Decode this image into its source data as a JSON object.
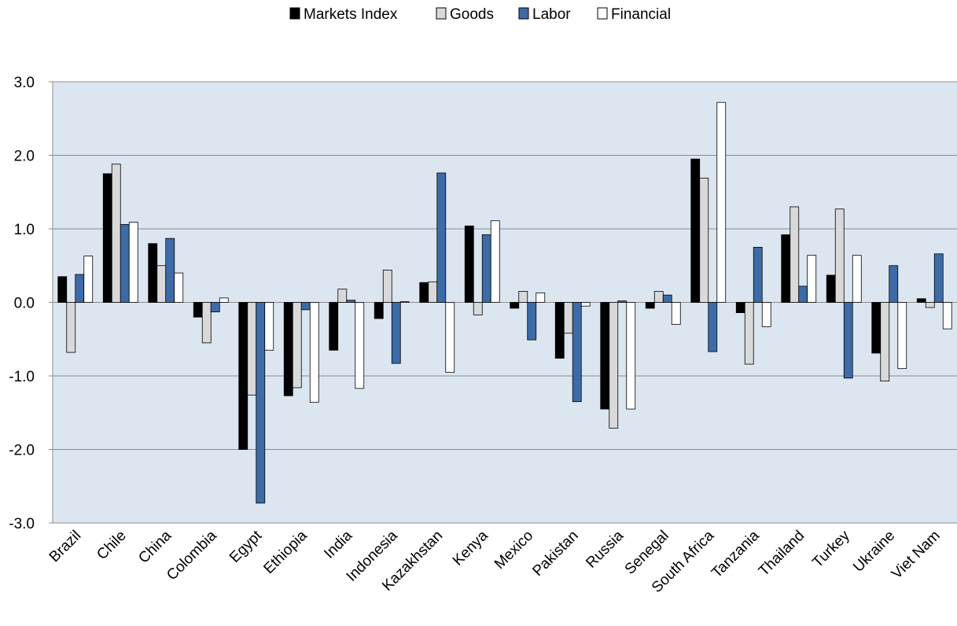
{
  "chart_data": {
    "type": "bar",
    "categories": [
      "Brazil",
      "Chile",
      "China",
      "Colombia",
      "Egypt",
      "Ethiopia",
      "India",
      "Indonesia",
      "Kazakhstan",
      "Kenya",
      "Mexico",
      "Pakistan",
      "Russia",
      "Senegal",
      "South Africa",
      "Tanzania",
      "Thailand",
      "Turkey",
      "Ukraine",
      "Viet Nam"
    ],
    "series": [
      {
        "name": "Markets Index",
        "color": "#000000",
        "values": [
          0.35,
          1.75,
          0.8,
          -0.2,
          -2.0,
          -1.27,
          -0.65,
          -0.22,
          0.27,
          1.04,
          -0.08,
          -0.76,
          -1.45,
          -0.08,
          1.95,
          -0.14,
          0.92,
          0.37,
          -0.69,
          0.05
        ]
      },
      {
        "name": "Goods",
        "color": "#d9d9d9",
        "values": [
          -0.68,
          1.88,
          0.5,
          -0.55,
          -1.26,
          -1.16,
          0.18,
          0.44,
          0.28,
          -0.17,
          0.15,
          -0.42,
          -1.71,
          0.15,
          1.69,
          -0.84,
          1.3,
          1.27,
          -1.07,
          -0.07
        ]
      },
      {
        "name": "Labor",
        "color": "#3d6ba8",
        "values": [
          0.38,
          1.06,
          0.87,
          -0.13,
          -2.73,
          -0.1,
          0.03,
          -0.83,
          1.76,
          0.92,
          -0.51,
          -1.35,
          0.02,
          0.1,
          -0.67,
          0.75,
          0.22,
          -1.03,
          0.5,
          0.66
        ]
      },
      {
        "name": "Financial",
        "color": "#ffffff",
        "values": [
          0.63,
          1.09,
          0.4,
          0.06,
          -0.65,
          -1.36,
          -1.17,
          0.01,
          -0.95,
          1.11,
          0.13,
          -0.05,
          -1.45,
          -0.3,
          2.72,
          -0.33,
          0.64,
          0.64,
          -0.9,
          -0.36
        ]
      }
    ],
    "ylim": [
      -3,
      3
    ],
    "yticks": [
      {
        "value": -3,
        "label": "-3.0"
      },
      {
        "value": -2,
        "label": "-2.0"
      },
      {
        "value": -1,
        "label": "-1.0"
      },
      {
        "value": 0,
        "label": "0.0"
      },
      {
        "value": 1,
        "label": "1.0"
      },
      {
        "value": 2,
        "label": "2.0"
      },
      {
        "value": 3,
        "label": "3.0"
      }
    ],
    "grid": true,
    "legend": "top"
  }
}
